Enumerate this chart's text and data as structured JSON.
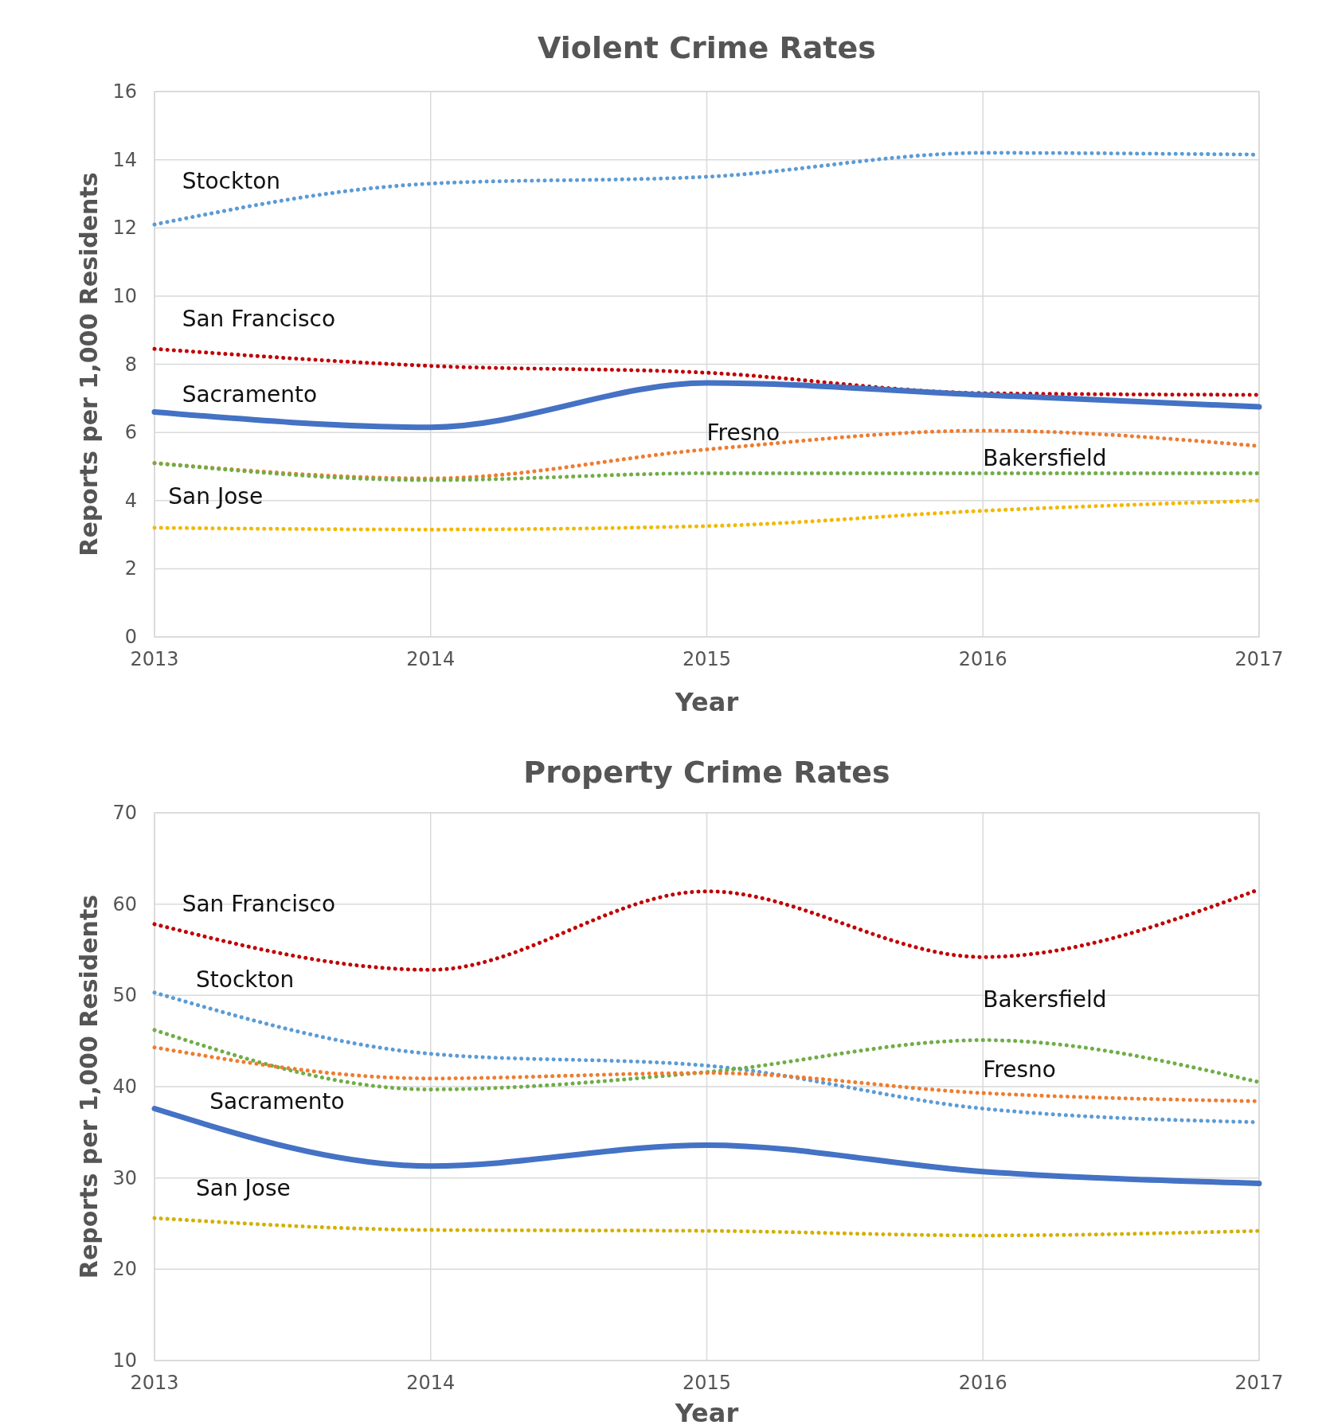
{
  "chart_data": [
    {
      "type": "line",
      "title": "Violent Crime Rates",
      "xlabel": "Year",
      "ylabel": "Reports per 1,000 Residents",
      "x": [
        2013,
        2014,
        2015,
        2016,
        2017
      ],
      "xlim": [
        2013,
        2017
      ],
      "xticks": [
        2013,
        2014,
        2015,
        2016,
        2017
      ],
      "ylim": [
        0,
        16
      ],
      "yticks": [
        0,
        2,
        4,
        6,
        8,
        10,
        12,
        14,
        16
      ],
      "grid": true,
      "series": [
        {
          "name": "Stockton",
          "color": "#5b9bd5",
          "line_style": "dotted",
          "values": [
            12.1,
            13.3,
            13.5,
            14.2,
            14.15
          ]
        },
        {
          "name": "San Francisco",
          "color": "#c00000",
          "line_style": "dotted",
          "values": [
            8.45,
            7.95,
            7.75,
            7.15,
            7.1
          ]
        },
        {
          "name": "Sacramento",
          "color": "#4472c4",
          "line_style": "solid",
          "values": [
            6.6,
            6.15,
            7.45,
            7.1,
            6.75
          ]
        },
        {
          "name": "Fresno",
          "color": "#ed7d31",
          "line_style": "dotted",
          "values": [
            5.1,
            4.65,
            5.5,
            6.05,
            5.6
          ]
        },
        {
          "name": "Bakersfield",
          "color": "#70ad47",
          "line_style": "dotted",
          "values": [
            5.1,
            4.6,
            4.8,
            4.8,
            4.8
          ]
        },
        {
          "name": "San Jose",
          "color": "#f2b800",
          "line_style": "dotted",
          "values": [
            3.2,
            3.15,
            3.25,
            3.7,
            4.0
          ]
        }
      ]
    },
    {
      "type": "line",
      "title": "Property Crime Rates",
      "xlabel": "Year",
      "ylabel": "Reports per 1,000 Residents",
      "x": [
        2013,
        2014,
        2015,
        2016,
        2017
      ],
      "xlim": [
        2013,
        2017
      ],
      "xticks": [
        2013,
        2014,
        2015,
        2016,
        2017
      ],
      "ylim": [
        10,
        70
      ],
      "yticks": [
        10,
        20,
        30,
        40,
        50,
        60,
        70
      ],
      "grid": true,
      "series": [
        {
          "name": "San Francisco",
          "color": "#c00000",
          "line_style": "dotted",
          "values": [
            57.8,
            52.8,
            61.4,
            54.2,
            61.6
          ]
        },
        {
          "name": "Stockton",
          "color": "#5b9bd5",
          "line_style": "dotted",
          "values": [
            50.3,
            43.6,
            42.3,
            37.6,
            36.1
          ]
        },
        {
          "name": "Bakersfield",
          "color": "#70ad47",
          "line_style": "dotted",
          "values": [
            46.2,
            39.7,
            41.6,
            45.1,
            40.5
          ]
        },
        {
          "name": "Fresno",
          "color": "#ed7d31",
          "line_style": "dotted",
          "values": [
            44.3,
            40.9,
            41.5,
            39.3,
            38.4
          ]
        },
        {
          "name": "Sacramento",
          "color": "#4472c4",
          "line_style": "solid",
          "values": [
            37.6,
            31.3,
            33.6,
            30.7,
            29.4
          ]
        },
        {
          "name": "San Jose",
          "color": "#d4b000",
          "line_style": "dotted",
          "values": [
            25.6,
            24.3,
            24.2,
            23.7,
            24.2
          ]
        }
      ]
    }
  ]
}
